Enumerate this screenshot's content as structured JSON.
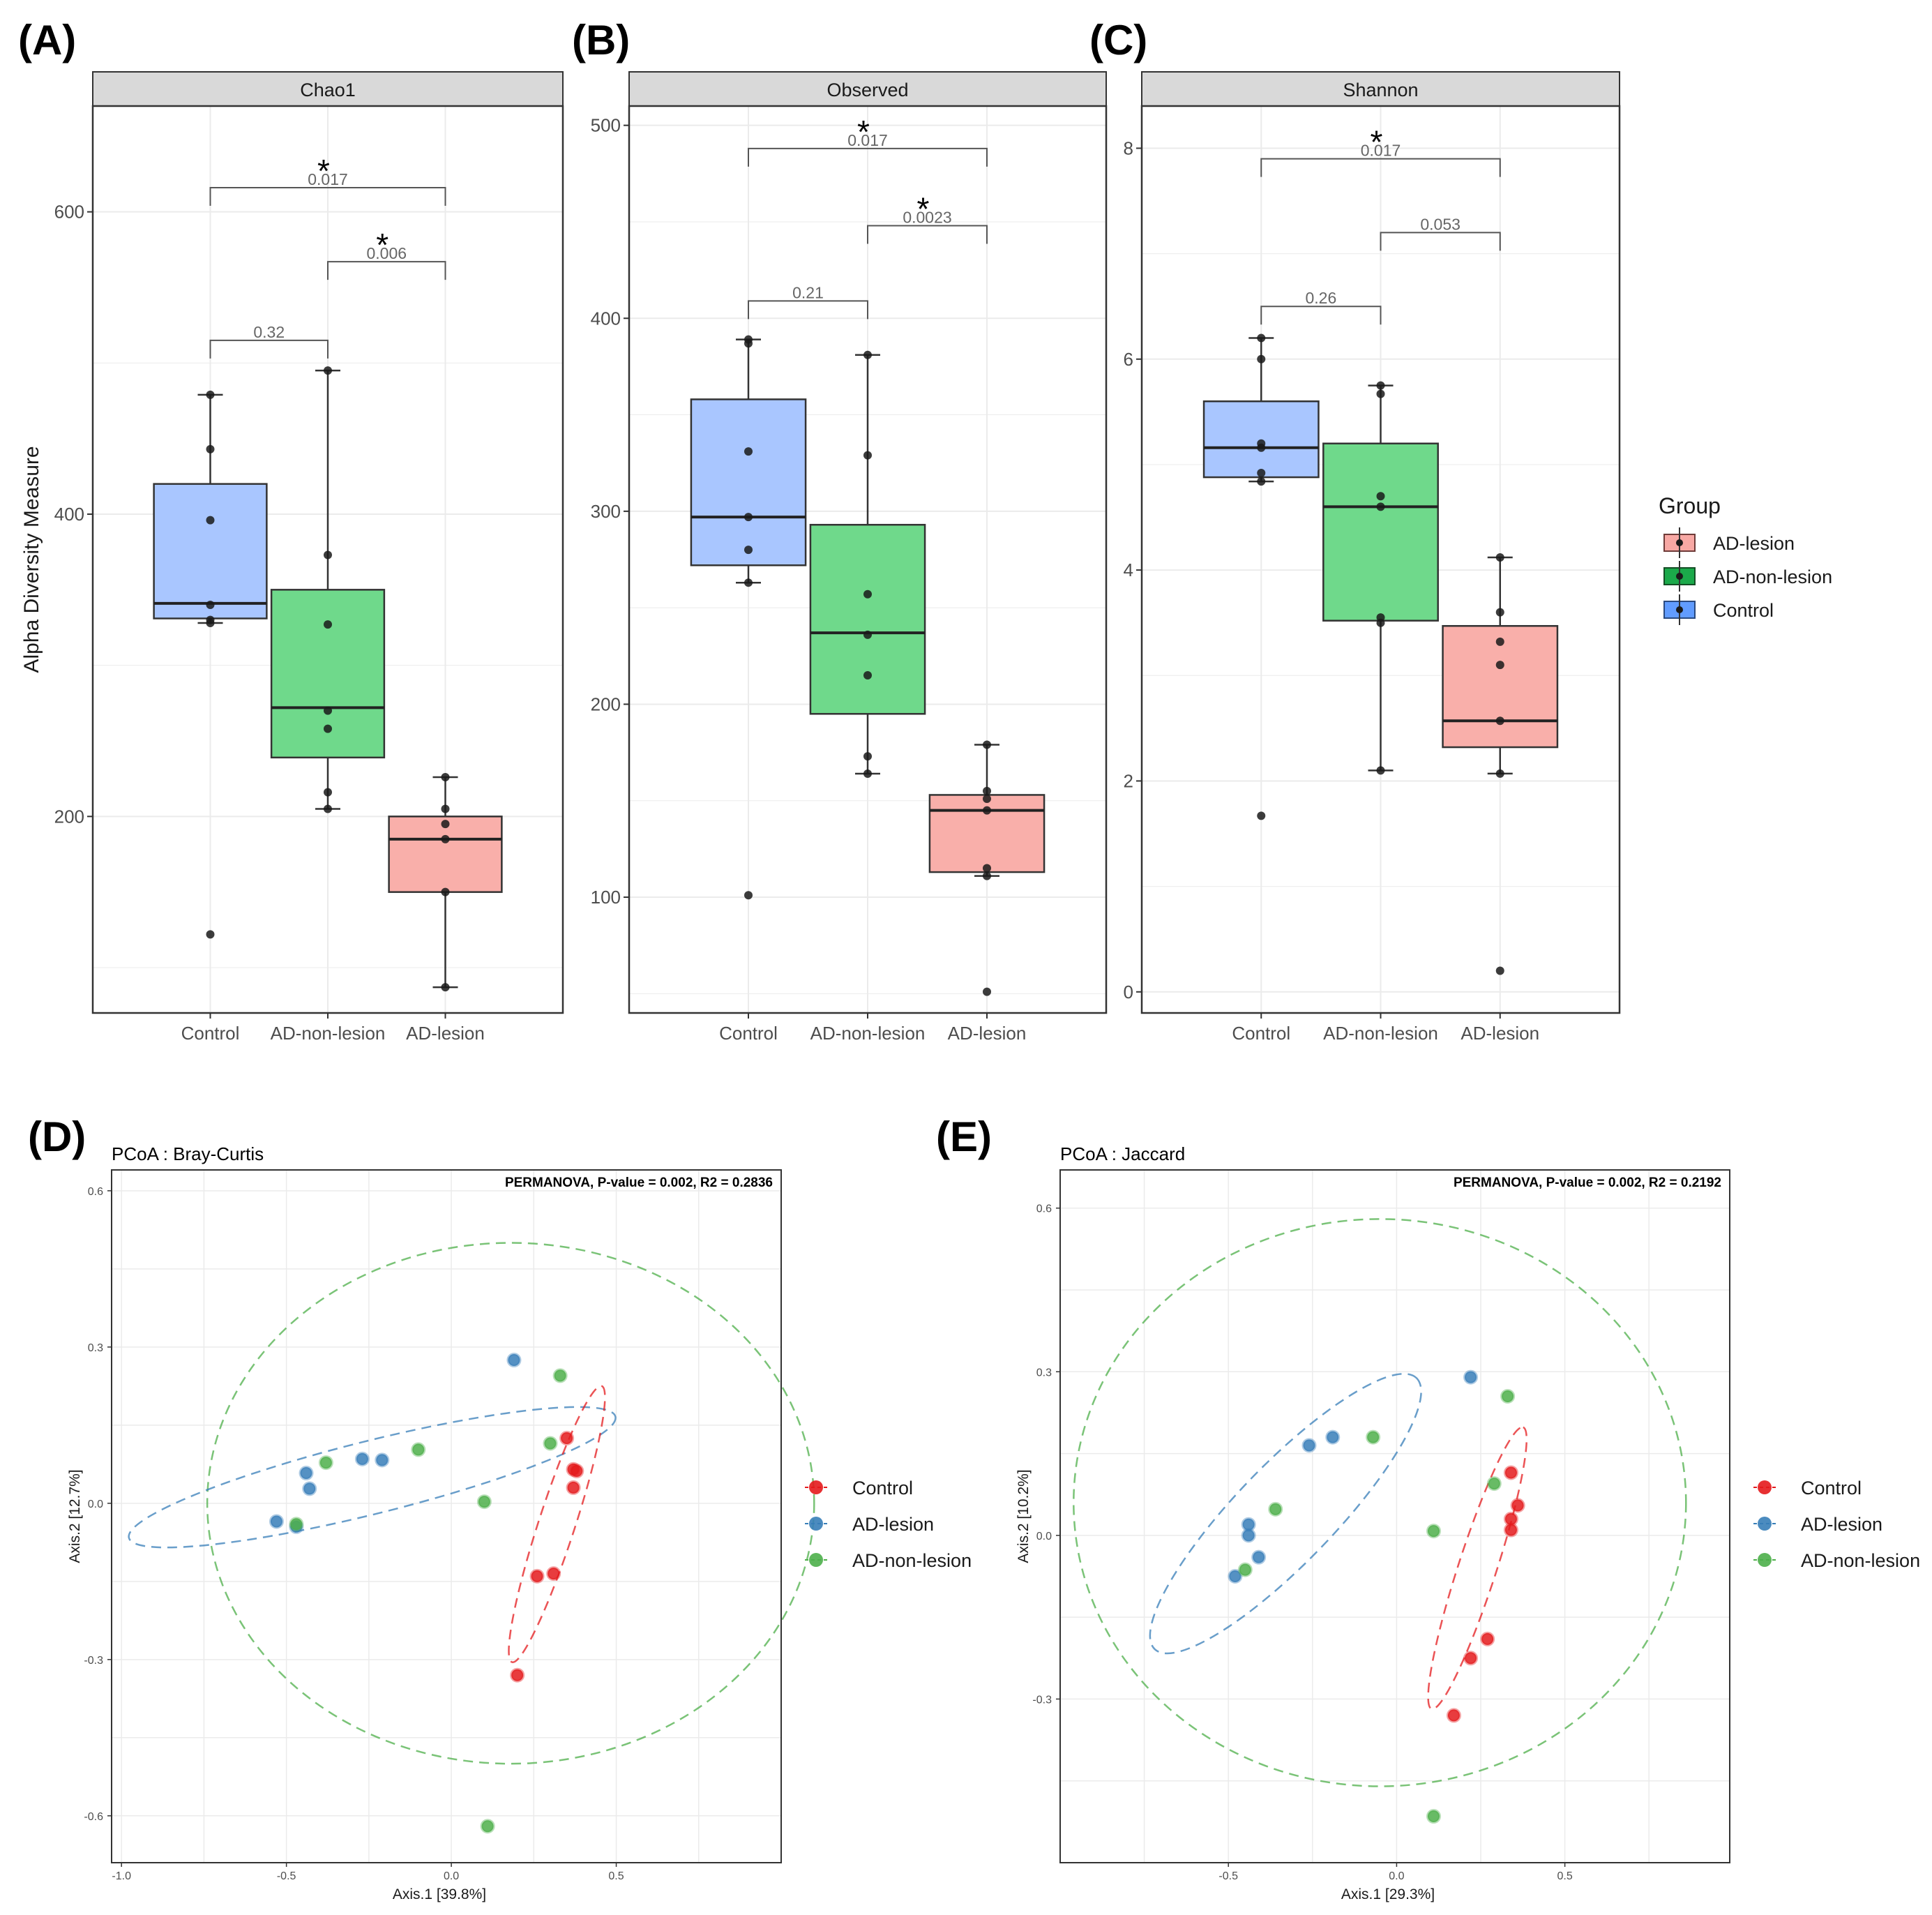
{
  "labels": {
    "a": "(A)",
    "b": "(B)",
    "c": "(C)",
    "d": "(D)",
    "e": "(E)"
  },
  "legend": {
    "title": "Group",
    "items": [
      {
        "label": "AD-lesion",
        "fill": "#F8A8A4",
        "stroke": "#6E3B38"
      },
      {
        "label": "AD-non-lesion",
        "fill": "#1BA94A",
        "stroke": "#144E25"
      },
      {
        "label": "Control",
        "fill": "#619CFF",
        "stroke": "#2A4A80"
      }
    ]
  },
  "scatter_legend": {
    "items": [
      {
        "label": "Control",
        "color": "#E41A1C"
      },
      {
        "label": "AD-lesion",
        "color": "#377EB8"
      },
      {
        "label": "AD-non-lesion",
        "color": "#4DAF4A"
      }
    ]
  },
  "chart_data": [
    {
      "type": "box",
      "panel": "(A)",
      "title": "Chao1",
      "ylabel": "Alpha Diversity Measure",
      "ylim": [
        70,
        670
      ],
      "yticks": [
        200,
        400,
        600
      ],
      "categories": [
        "Control",
        "AD-non-lesion",
        "AD-lesion"
      ],
      "fills": [
        "#A9C6FF",
        "#6FD98B",
        "#F9AFAA"
      ],
      "boxes": [
        {
          "q1": 331,
          "median": 341,
          "q3": 420,
          "lower": 328,
          "upper": 479
        },
        {
          "q1": 239,
          "median": 272,
          "q3": 350,
          "lower": 205,
          "upper": 495
        },
        {
          "q1": 150,
          "median": 185,
          "q3": 200,
          "lower": 87,
          "upper": 226
        }
      ],
      "points": [
        [
          122,
          328,
          330,
          340,
          396,
          443,
          479
        ],
        [
          205,
          216,
          258,
          270,
          327,
          373,
          495
        ],
        [
          87,
          150,
          185,
          195,
          205,
          226
        ]
      ],
      "comparisons": [
        {
          "from": 0,
          "to": 1,
          "p": "0.32",
          "y": 515,
          "star": false
        },
        {
          "from": 1,
          "to": 2,
          "p": "0.006",
          "y": 567,
          "star": true
        },
        {
          "from": 0,
          "to": 2,
          "p": "0.017",
          "y": 616,
          "star": true
        }
      ]
    },
    {
      "type": "box",
      "panel": "(B)",
      "title": "Observed",
      "ylabel": "",
      "ylim": [
        40,
        510
      ],
      "yticks": [
        100,
        200,
        300,
        400,
        500
      ],
      "categories": [
        "Control",
        "AD-non-lesion",
        "AD-lesion"
      ],
      "fills": [
        "#A9C6FF",
        "#6FD98B",
        "#F9AFAA"
      ],
      "boxes": [
        {
          "q1": 272,
          "median": 297,
          "q3": 358,
          "lower": 263,
          "upper": 389
        },
        {
          "q1": 195,
          "median": 237,
          "q3": 293,
          "lower": 164,
          "upper": 381
        },
        {
          "q1": 113,
          "median": 145,
          "q3": 153,
          "lower": 111,
          "upper": 179
        }
      ],
      "points": [
        [
          101,
          263,
          280,
          297,
          331,
          387,
          389
        ],
        [
          164,
          173,
          215,
          236,
          257,
          329,
          381
        ],
        [
          51,
          111,
          115,
          145,
          151,
          155,
          179
        ]
      ],
      "comparisons": [
        {
          "from": 0,
          "to": 1,
          "p": "0.21",
          "y": 409,
          "star": false
        },
        {
          "from": 1,
          "to": 2,
          "p": "0.0023",
          "y": 448,
          "star": true
        },
        {
          "from": 0,
          "to": 2,
          "p": "0.017",
          "y": 488,
          "star": true
        }
      ]
    },
    {
      "type": "box",
      "panel": "(C)",
      "title": "Shannon",
      "ylabel": "",
      "ylim": [
        -0.2,
        8.4
      ],
      "yticks": [
        0,
        2,
        4,
        6,
        8
      ],
      "categories": [
        "Control",
        "AD-non-lesion",
        "AD-lesion"
      ],
      "fills": [
        "#A9C6FF",
        "#6FD98B",
        "#F9AFAA"
      ],
      "boxes": [
        {
          "q1": 4.88,
          "median": 5.16,
          "q3": 5.6,
          "lower": 4.84,
          "upper": 6.2
        },
        {
          "q1": 3.52,
          "median": 4.6,
          "q3": 5.2,
          "lower": 2.1,
          "upper": 5.75
        },
        {
          "q1": 2.32,
          "median": 2.57,
          "q3": 3.47,
          "lower": 2.07,
          "upper": 4.12
        }
      ],
      "points": [
        [
          1.67,
          4.84,
          4.92,
          5.16,
          5.2,
          6.0,
          6.2
        ],
        [
          2.1,
          3.5,
          3.55,
          4.6,
          4.7,
          5.67,
          5.75
        ],
        [
          0.2,
          2.07,
          2.57,
          3.1,
          3.32,
          3.6,
          4.12
        ]
      ],
      "comparisons": [
        {
          "from": 0,
          "to": 1,
          "p": "0.26",
          "y": 6.5,
          "star": false
        },
        {
          "from": 1,
          "to": 2,
          "p": "0.053",
          "y": 7.2,
          "star": false
        },
        {
          "from": 0,
          "to": 2,
          "p": "0.017",
          "y": 7.9,
          "star": true
        }
      ]
    },
    {
      "type": "scatter",
      "panel": "(D)",
      "title": "PCoA : Bray-Curtis",
      "annotation": "PERMANOVA, P-value = 0.002, R2 = 0.2836",
      "xlabel": "Axis.1   [39.8%]",
      "ylabel": "Axis.2   [12.7%]",
      "xlim": [
        -1.03,
        1.0
      ],
      "ylim": [
        -0.69,
        0.64
      ],
      "xticks": [
        -1.0,
        -0.5,
        0.0,
        0.5
      ],
      "yticks": [
        -0.6,
        -0.3,
        0.0,
        0.3,
        0.6
      ],
      "xtick_labels": [
        "-1.0",
        "-0.5",
        "0.0",
        "0.5"
      ],
      "ytick_labels": [
        "-0.6",
        "-0.3",
        "0.0",
        "0.3",
        "0.6"
      ],
      "series": [
        {
          "name": "Control",
          "color": "#E41A1C",
          "points": [
            [
              0.35,
              0.125
            ],
            [
              0.37,
              0.065
            ],
            [
              0.38,
              0.062
            ],
            [
              0.37,
              0.03
            ],
            [
              0.31,
              -0.135
            ],
            [
              0.26,
              -0.14
            ],
            [
              0.2,
              -0.33
            ]
          ]
        },
        {
          "name": "AD-lesion",
          "color": "#377EB8",
          "points": [
            [
              0.19,
              0.275
            ],
            [
              -0.44,
              0.058
            ],
            [
              -0.43,
              0.028
            ],
            [
              -0.27,
              0.085
            ],
            [
              -0.21,
              0.083
            ],
            [
              -0.53,
              -0.035
            ],
            [
              -0.47,
              -0.045
            ]
          ]
        },
        {
          "name": "AD-non-lesion",
          "color": "#4DAF4A",
          "points": [
            [
              0.33,
              0.245
            ],
            [
              0.3,
              0.115
            ],
            [
              -0.1,
              0.103
            ],
            [
              -0.38,
              0.078
            ],
            [
              0.1,
              0.003
            ],
            [
              -0.47,
              -0.04
            ],
            [
              0.11,
              -0.62
            ]
          ]
        }
      ],
      "ellipses": [
        {
          "group": "AD-non-lesion",
          "color": "#4DAF4A",
          "cx": 0.18,
          "cy": 0.0,
          "rx": 0.92,
          "ry": 0.5,
          "angle": 0
        },
        {
          "group": "AD-lesion",
          "color": "#377EB8",
          "cx": -0.24,
          "cy": 0.05,
          "rx": 0.76,
          "ry": 0.07,
          "angle": 14
        },
        {
          "group": "Control",
          "color": "#E41A1C",
          "cx": 0.32,
          "cy": -0.04,
          "rx": 0.44,
          "ry": 0.035,
          "angle": 72
        }
      ]
    },
    {
      "type": "scatter",
      "panel": "(E)",
      "title": "PCoA : Jaccard",
      "annotation": "PERMANOVA, P-value = 0.002, R2 = 0.2192",
      "xlabel": "Axis.1   [29.3%]",
      "ylabel": "Axis.2   [10.2%]",
      "xlim": [
        -1.0,
        0.99
      ],
      "ylim": [
        -0.6,
        0.67
      ],
      "xticks": [
        -0.5,
        0.0,
        0.5
      ],
      "yticks": [
        -0.3,
        0.0,
        0.3,
        0.6
      ],
      "xtick_labels": [
        "-0.5",
        "0.0",
        "0.5"
      ],
      "ytick_labels": [
        "-0.3",
        "0.0",
        "0.3",
        "0.6"
      ],
      "series": [
        {
          "name": "Control",
          "color": "#E41A1C",
          "points": [
            [
              0.34,
              0.115
            ],
            [
              0.36,
              0.055
            ],
            [
              0.34,
              0.03
            ],
            [
              0.34,
              0.01
            ],
            [
              0.27,
              -0.19
            ],
            [
              0.22,
              -0.225
            ],
            [
              0.17,
              -0.33
            ]
          ]
        },
        {
          "name": "AD-lesion",
          "color": "#377EB8",
          "points": [
            [
              0.22,
              0.29
            ],
            [
              -0.19,
              0.18
            ],
            [
              -0.26,
              0.165
            ],
            [
              -0.44,
              0.02
            ],
            [
              -0.44,
              0.0
            ],
            [
              -0.41,
              -0.04
            ],
            [
              -0.48,
              -0.075
            ]
          ]
        },
        {
          "name": "AD-non-lesion",
          "color": "#4DAF4A",
          "points": [
            [
              0.33,
              0.255
            ],
            [
              -0.07,
              0.18
            ],
            [
              0.29,
              0.095
            ],
            [
              -0.36,
              0.048
            ],
            [
              0.11,
              0.008
            ],
            [
              -0.45,
              -0.063
            ],
            [
              0.11,
              -0.515
            ]
          ]
        }
      ],
      "ellipses": [
        {
          "group": "AD-non-lesion",
          "color": "#4DAF4A",
          "cx": -0.05,
          "cy": 0.06,
          "rx": 0.91,
          "ry": 0.52,
          "angle": 0
        },
        {
          "group": "AD-lesion",
          "color": "#377EB8",
          "cx": -0.33,
          "cy": 0.04,
          "rx": 0.56,
          "ry": 0.09,
          "angle": 46
        },
        {
          "group": "Control",
          "color": "#E41A1C",
          "cx": 0.24,
          "cy": -0.06,
          "rx": 0.44,
          "ry": 0.035,
          "angle": 72
        }
      ]
    }
  ]
}
